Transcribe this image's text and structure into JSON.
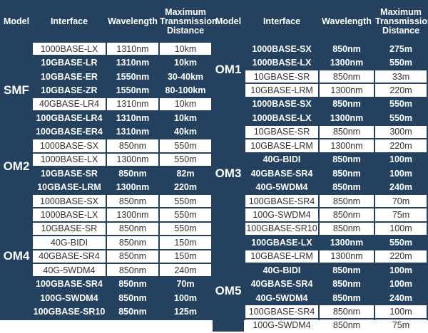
{
  "header": {
    "model": "Model",
    "interface": "Interface",
    "wavelength": "Wavelength",
    "distance_line1": "Maximum",
    "distance_line2": "Transmission",
    "distance_line3": "Distance"
  },
  "colors": {
    "dark": "#24425f",
    "light": "#ffffff"
  },
  "left_groups": [
    {
      "model": "SMF",
      "rows": [
        {
          "interface": "1000BASE-LX",
          "wavelength": "1310nm",
          "distance": "10km",
          "style": "light"
        },
        {
          "interface": "10GBASE-LR",
          "wavelength": "1310nm",
          "distance": "10km",
          "style": "dark"
        },
        {
          "interface": "10GBASE-ER",
          "wavelength": "1550nm",
          "distance": "30-40km",
          "style": "dark"
        },
        {
          "interface": "10GBASE-ZR",
          "wavelength": "1550nm",
          "distance": "80-100km",
          "style": "dark"
        },
        {
          "interface": "40GBASE-LR4",
          "wavelength": "1310nm",
          "distance": "10km",
          "style": "light"
        },
        {
          "interface": "100GBASE-LR4",
          "wavelength": "1310nm",
          "distance": "10km",
          "style": "dark"
        },
        {
          "interface": "100GBASE-ER4",
          "wavelength": "1310nm",
          "distance": "40km",
          "style": "dark"
        }
      ]
    },
    {
      "model": "OM2",
      "rows": [
        {
          "interface": "1000BASE-SX",
          "wavelength": "850nm",
          "distance": "550m",
          "style": "light"
        },
        {
          "interface": "1000BASE-LX",
          "wavelength": "1300nm",
          "distance": "550m",
          "style": "light"
        },
        {
          "interface": "10GBASE-SR",
          "wavelength": "850nm",
          "distance": "82m",
          "style": "dark"
        },
        {
          "interface": "10GBASE-LRM",
          "wavelength": "1300nm",
          "distance": "220m",
          "style": "dark"
        }
      ]
    },
    {
      "model": "OM4",
      "rows": [
        {
          "interface": "1000BASE-SX",
          "wavelength": "850nm",
          "distance": "550m",
          "style": "light"
        },
        {
          "interface": "1000BASE-LX",
          "wavelength": "1300nm",
          "distance": "550m",
          "style": "light"
        },
        {
          "interface": "10GBASE-SR",
          "wavelength": "850nm",
          "distance": "550m",
          "style": "light"
        },
        {
          "interface": "40G-BIDI",
          "wavelength": "850nm",
          "distance": "150m",
          "style": "light"
        },
        {
          "interface": "40GBASE-SR4",
          "wavelength": "850nm",
          "distance": "150m",
          "style": "light"
        },
        {
          "interface": "40G-5WDM4",
          "wavelength": "850nm",
          "distance": "240m",
          "style": "light"
        },
        {
          "interface": "100GBASE-SR4",
          "wavelength": "850nm",
          "distance": "70m",
          "style": "dark"
        },
        {
          "interface": "100G-SWDM4",
          "wavelength": "850nm",
          "distance": "100m",
          "style": "dark"
        },
        {
          "interface": "100GBASE-SR10",
          "wavelength": "850nm",
          "distance": "125m",
          "style": "dark"
        }
      ]
    }
  ],
  "right_groups": [
    {
      "model": "OM1",
      "rows": [
        {
          "interface": "1000BASE-SX",
          "wavelength": "850nm",
          "distance": "275m",
          "style": "dark"
        },
        {
          "interface": "1000BASE-LX",
          "wavelength": "1300nm",
          "distance": "550m",
          "style": "dark"
        },
        {
          "interface": "10GBASE-SR",
          "wavelength": "850nm",
          "distance": "33m",
          "style": "light"
        },
        {
          "interface": "10GBASE-LRM",
          "wavelength": "1300nm",
          "distance": "220m",
          "style": "light"
        }
      ]
    },
    {
      "model": "OM3",
      "rows": [
        {
          "interface": "1000BASE-SX",
          "wavelength": "850nm",
          "distance": "550m",
          "style": "dark"
        },
        {
          "interface": "1000BASE-LX",
          "wavelength": "1300nm",
          "distance": "550m",
          "style": "dark"
        },
        {
          "interface": "10GBASE-SR",
          "wavelength": "850nm",
          "distance": "300m",
          "style": "light"
        },
        {
          "interface": "10GBASE-LRM",
          "wavelength": "1300nm",
          "distance": "220m",
          "style": "light"
        },
        {
          "interface": "40G-BIDI",
          "wavelength": "850nm",
          "distance": "100m",
          "style": "dark"
        },
        {
          "interface": "40GBASE-SR4",
          "wavelength": "850nm",
          "distance": "100m",
          "style": "dark"
        },
        {
          "interface": "40G-5WDM4",
          "wavelength": "850nm",
          "distance": "240m",
          "style": "dark"
        },
        {
          "interface": "100GBASE-SR4",
          "wavelength": "850nm",
          "distance": "70m",
          "style": "light"
        },
        {
          "interface": "100G-SWDM4",
          "wavelength": "850nm",
          "distance": "75m",
          "style": "light"
        },
        {
          "interface": "100GBASE-SR10",
          "wavelength": "850nm",
          "distance": "100m",
          "style": "light"
        },
        {
          "interface": "100GBASE-LX",
          "wavelength": "1300nm",
          "distance": "550m",
          "style": "dark"
        }
      ]
    },
    {
      "model": "OM5",
      "rows": [
        {
          "interface": "10GBASE-LRM",
          "wavelength": "1300nm",
          "distance": "220m",
          "style": "light"
        },
        {
          "interface": "40G-BIDI",
          "wavelength": "850nm",
          "distance": "100m",
          "style": "dark"
        },
        {
          "interface": "40GBASE-SR4",
          "wavelength": "850nm",
          "distance": "100m",
          "style": "dark"
        },
        {
          "interface": "40G-5WDM4",
          "wavelength": "850nm",
          "distance": "240m",
          "style": "dark"
        },
        {
          "interface": "100GBASE-SR4",
          "wavelength": "850nm",
          "distance": "100m",
          "style": "light"
        },
        {
          "interface": "100G-SWDM4",
          "wavelength": "850nm",
          "distance": "75m",
          "style": "light"
        }
      ]
    }
  ]
}
